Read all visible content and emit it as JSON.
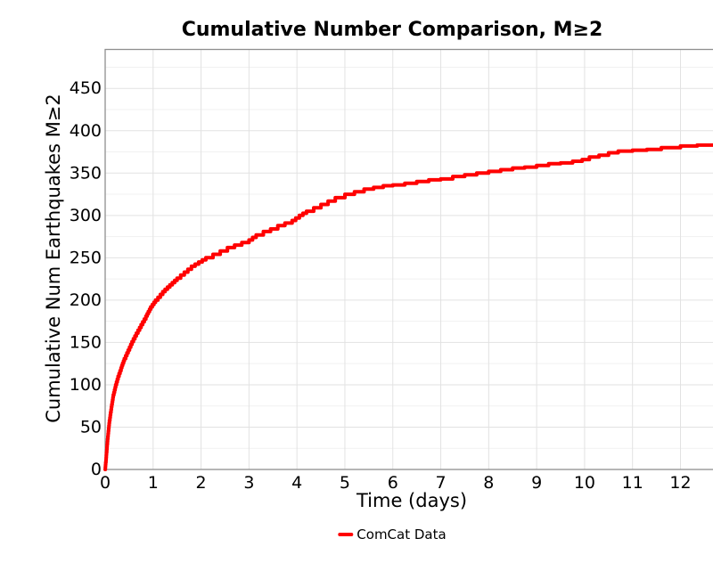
{
  "chart_data": {
    "type": "line",
    "title": "Cumulative Number Comparison, M≥2",
    "xlabel": "Time (days)",
    "ylabel": "Cumulative Num Earthquakes M≥2",
    "xlim": [
      0,
      12.79
    ],
    "ylim": [
      0,
      496
    ],
    "x_ticks": [
      0,
      1,
      2,
      3,
      4,
      5,
      6,
      7,
      8,
      9,
      10,
      11,
      12
    ],
    "y_ticks": [
      0,
      50,
      100,
      150,
      200,
      250,
      300,
      350,
      400,
      450
    ],
    "grid": {
      "vertical_major_days": 1,
      "horizontal_major_step": 50,
      "horizontal_minor_step": 25
    },
    "legend_position": "bottom-center",
    "series": [
      {
        "name": "ComCat Data",
        "color": "#ff0000",
        "style": "cumulative-step",
        "points": [
          [
            0,
            0
          ],
          [
            0.02,
            14
          ],
          [
            0.05,
            36
          ],
          [
            0.09,
            58
          ],
          [
            0.13,
            74
          ],
          [
            0.17,
            88
          ],
          [
            0.22,
            100
          ],
          [
            0.27,
            110
          ],
          [
            0.33,
            120
          ],
          [
            0.4,
            131
          ],
          [
            0.48,
            141
          ],
          [
            0.56,
            151
          ],
          [
            0.65,
            161
          ],
          [
            0.75,
            171
          ],
          [
            0.85,
            181
          ],
          [
            0.95,
            192
          ],
          [
            1.05,
            200
          ],
          [
            1.2,
            210
          ],
          [
            1.35,
            218
          ],
          [
            1.5,
            226
          ],
          [
            1.65,
            233
          ],
          [
            1.8,
            240
          ],
          [
            1.95,
            245
          ],
          [
            2.1,
            250
          ],
          [
            2.25,
            254
          ],
          [
            2.4,
            258
          ],
          [
            2.55,
            262
          ],
          [
            2.7,
            265
          ],
          [
            2.85,
            268
          ],
          [
            3.0,
            271
          ],
          [
            3.15,
            277
          ],
          [
            3.3,
            281
          ],
          [
            3.45,
            284
          ],
          [
            3.6,
            288
          ],
          [
            3.75,
            291
          ],
          [
            3.9,
            294
          ],
          [
            4.05,
            300
          ],
          [
            4.2,
            305
          ],
          [
            4.35,
            309
          ],
          [
            4.5,
            313
          ],
          [
            4.65,
            317
          ],
          [
            4.8,
            321
          ],
          [
            5.0,
            325
          ],
          [
            5.2,
            328
          ],
          [
            5.4,
            331
          ],
          [
            5.6,
            333
          ],
          [
            5.8,
            335
          ],
          [
            6.0,
            336
          ],
          [
            6.25,
            338
          ],
          [
            6.5,
            340
          ],
          [
            6.75,
            342
          ],
          [
            7.0,
            343
          ],
          [
            7.25,
            346
          ],
          [
            7.5,
            348
          ],
          [
            7.75,
            350
          ],
          [
            8.0,
            352
          ],
          [
            8.25,
            354
          ],
          [
            8.5,
            356
          ],
          [
            8.75,
            357
          ],
          [
            9.0,
            359
          ],
          [
            9.25,
            361
          ],
          [
            9.5,
            362
          ],
          [
            9.75,
            364
          ],
          [
            9.95,
            366
          ],
          [
            10.1,
            369
          ],
          [
            10.3,
            371
          ],
          [
            10.5,
            374
          ],
          [
            10.7,
            376
          ],
          [
            11.0,
            377
          ],
          [
            11.3,
            378
          ],
          [
            11.6,
            380
          ],
          [
            12.0,
            382
          ],
          [
            12.35,
            383
          ],
          [
            12.6,
            383
          ],
          [
            12.79,
            384
          ]
        ]
      }
    ]
  },
  "colors": {
    "series": "#ff0000",
    "grid_major": "#e2e2e2",
    "grid_minor": "#f1f1f1",
    "plot_border": "#8f8f8f",
    "text": "#000000"
  }
}
